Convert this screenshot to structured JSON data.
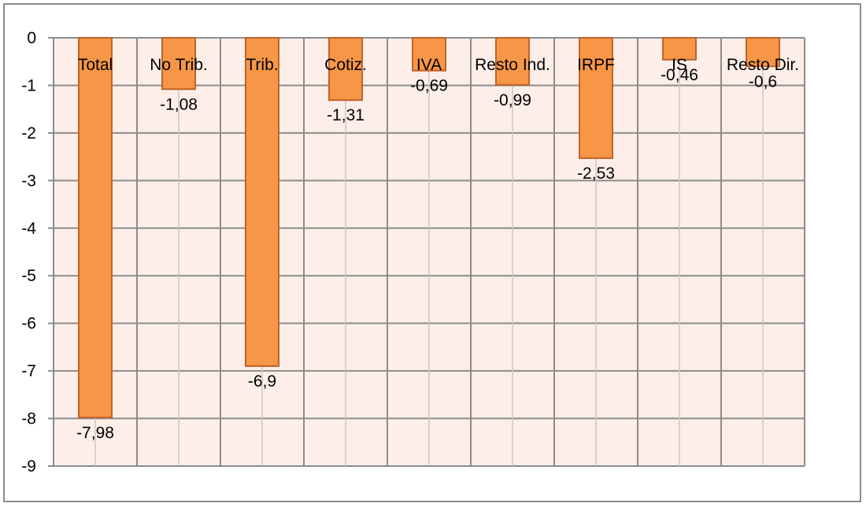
{
  "chart_data": {
    "type": "bar",
    "title": "",
    "xlabel": "",
    "ylabel": "",
    "categories": [
      "Total",
      "No Trib.",
      "Trib.",
      "Cotiz.",
      "IVA",
      "Resto Ind.",
      "IRPF",
      "IS",
      "Resto Dir."
    ],
    "values": [
      -7.98,
      -1.08,
      -6.9,
      -1.31,
      -0.69,
      -0.99,
      -2.53,
      -0.46,
      -0.6
    ],
    "data_labels": [
      "-7,98",
      "-1,08",
      "-6,9",
      "-1,31",
      "-0,69",
      "-0,99",
      "-2,53",
      "-0,46",
      "-0,6"
    ],
    "ylim": [
      -9,
      0
    ],
    "yticks": [
      0,
      -1,
      -2,
      -3,
      -4,
      -5,
      -6,
      -7,
      -8,
      -9
    ],
    "grid": true,
    "colors": {
      "bar_fill": "#f79646",
      "bar_stroke": "#c0632a",
      "plot_background": "#fdeee8",
      "grid": "#8c8c8c",
      "axis": "#8c8c8c"
    }
  }
}
